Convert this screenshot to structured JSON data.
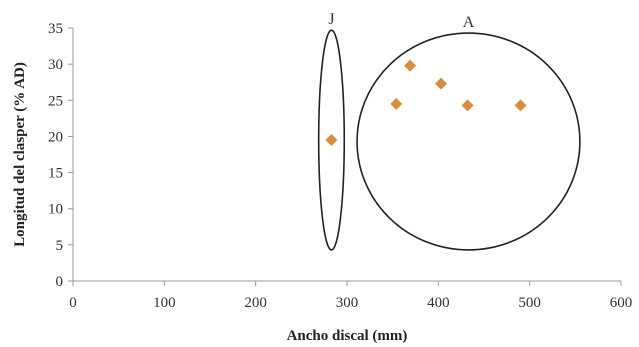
{
  "chart_data": {
    "type": "scatter",
    "xlabel": "Ancho discal (mm)",
    "ylabel": "Longitud del clasper (% AD)",
    "xlim": [
      0,
      600
    ],
    "ylim": [
      0,
      35
    ],
    "xticks": [
      "0",
      "100",
      "200",
      "300",
      "400",
      "500",
      "600"
    ],
    "yticks": [
      "0",
      "5",
      "10",
      "15",
      "20",
      "25",
      "30",
      "35"
    ],
    "grid": false,
    "legend": "none",
    "marker": "diamond",
    "marker_color": "#d98c3a",
    "points": [
      {
        "x": 283,
        "y": 19.5
      },
      {
        "x": 354,
        "y": 24.5
      },
      {
        "x": 369,
        "y": 29.8
      },
      {
        "x": 403,
        "y": 27.3
      },
      {
        "x": 432,
        "y": 24.3
      },
      {
        "x": 490,
        "y": 24.3
      }
    ],
    "groups": [
      {
        "label": "J",
        "shape": "ellipse",
        "cx": 283,
        "cy": 19.5,
        "rx": 14,
        "ry": 15.2
      },
      {
        "label": "A",
        "shape": "ellipse",
        "cx": 433,
        "cy": 19.3,
        "rx": 122,
        "ry": 15
      }
    ]
  }
}
